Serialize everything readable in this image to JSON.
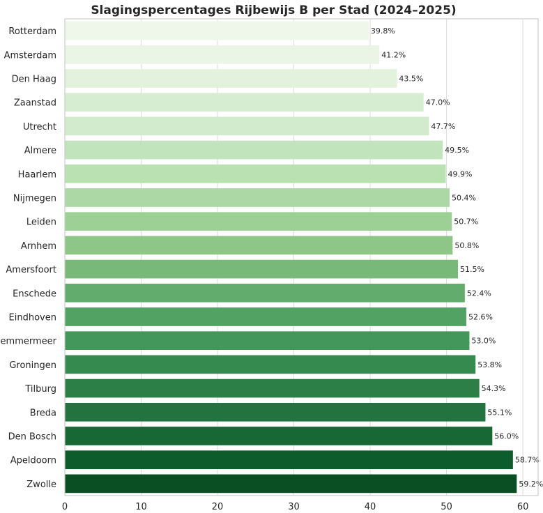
{
  "chart_data": {
    "type": "bar",
    "orientation": "horizontal",
    "title": "Slagingspercentages Rijbewijs B per Stad (2024–2025)",
    "xlabel": "",
    "ylabel": "",
    "xlim": [
      0,
      62
    ],
    "xticks": [
      "0",
      "10",
      "20",
      "30",
      "40",
      "50",
      "60"
    ],
    "grid": true,
    "categories": [
      "Rotterdam",
      "Amsterdam",
      "Den Haag",
      "Zaanstad",
      "Utrecht",
      "Almere",
      "Haarlem",
      "Nijmegen",
      "Leiden",
      "Arnhem",
      "Amersfoort",
      "Enschede",
      "Eindhoven",
      "Haarlemmermeer",
      "Groningen",
      "Tilburg",
      "Breda",
      "Den Bosch",
      "Apeldoorn",
      "Zwolle"
    ],
    "values": [
      39.8,
      41.2,
      43.5,
      47.0,
      47.7,
      49.5,
      49.9,
      50.4,
      50.7,
      50.8,
      51.5,
      52.4,
      52.6,
      53.0,
      53.8,
      54.3,
      55.1,
      56.0,
      58.7,
      59.2
    ],
    "value_labels": [
      "39.8%",
      "41.2%",
      "43.5%",
      "47.0%",
      "47.7%",
      "49.5%",
      "49.9%",
      "50.4%",
      "50.7%",
      "50.8%",
      "51.5%",
      "52.4%",
      "52.6%",
      "53.0%",
      "53.8%",
      "54.3%",
      "55.1%",
      "56.0%",
      "58.7%",
      "59.2%"
    ],
    "colors": [
      "#eef7ea",
      "#eaf5e6",
      "#e2f2dd",
      "#d7edd1",
      "#d2ebcc",
      "#c2e4bc",
      "#b9e1b2",
      "#abd8a4",
      "#9dd095",
      "#8dc687",
      "#78b97a",
      "#62ad6d",
      "#52a263",
      "#43975a",
      "#358a50",
      "#2b7f47",
      "#22733f",
      "#176835",
      "#0d5c2c",
      "#0a4f24"
    ]
  }
}
